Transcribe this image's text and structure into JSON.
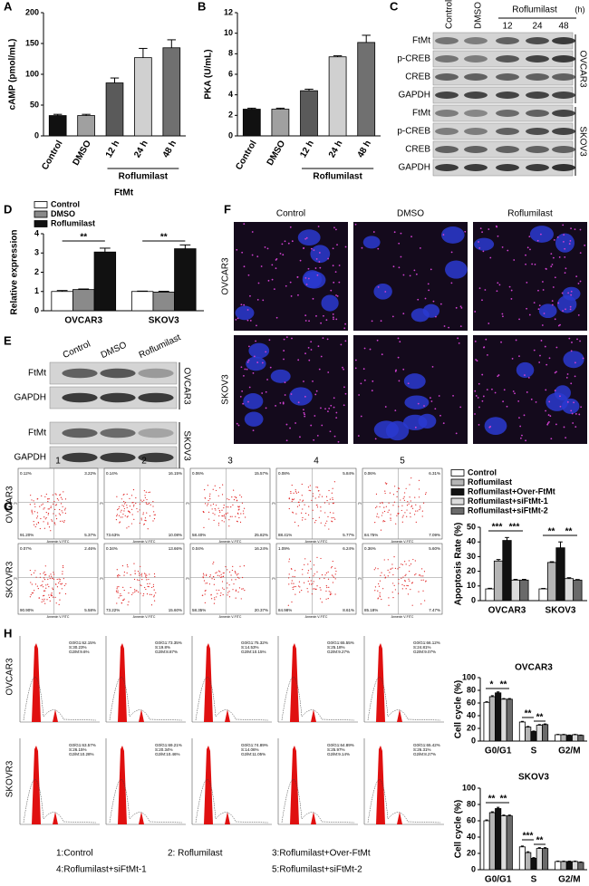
{
  "panel_labels": [
    "A",
    "B",
    "C",
    "D",
    "E",
    "F",
    "G",
    "H"
  ],
  "chart_data": [
    {
      "type": "bar",
      "ylabel": "cAMP (pmol/mL)",
      "categories": [
        "Control",
        "DMSO",
        "12 h",
        "24 h",
        "48 h"
      ],
      "group_label": "Roflumilast",
      "values": [
        33,
        33,
        86,
        127,
        143
      ],
      "errors": [
        2,
        2,
        8,
        15,
        13
      ],
      "colors": [
        "#111111",
        "#a0a0a0",
        "#5a5a5a",
        "#d0d0d0",
        "#707070"
      ],
      "ylim": [
        0,
        200
      ],
      "yticks": [
        0,
        50,
        100,
        150,
        200
      ]
    },
    {
      "type": "bar",
      "ylabel": "PKA (U/mL)",
      "categories": [
        "Control",
        "DMSO",
        "12 h",
        "24 h",
        "48 h"
      ],
      "group_label": "Roflumilast",
      "values": [
        2.6,
        2.6,
        4.4,
        7.7,
        9.1
      ],
      "errors": [
        0.1,
        0.1,
        0.15,
        0.1,
        0.7
      ],
      "colors": [
        "#111111",
        "#a0a0a0",
        "#5a5a5a",
        "#d0d0d0",
        "#707070"
      ],
      "ylim": [
        0,
        12
      ],
      "yticks": [
        0,
        2,
        4,
        6,
        8,
        10,
        12
      ]
    },
    {
      "type": "grouped_bar",
      "title": "FtMt",
      "ylabel": "Relative expression",
      "categories": [
        "OVCAR3",
        "SKOV3"
      ],
      "series": [
        {
          "name": "Control",
          "color": "#ffffff",
          "values": [
            1.0,
            1.0
          ],
          "errors": [
            0.05,
            0.02
          ]
        },
        {
          "name": "DMSO",
          "color": "#8a8a8a",
          "values": [
            1.1,
            0.97
          ],
          "errors": [
            0.03,
            0.04
          ]
        },
        {
          "name": "Roflumilast",
          "color": "#111111",
          "values": [
            3.05,
            3.22
          ],
          "errors": [
            0.2,
            0.2
          ]
        }
      ],
      "ylim": [
        0,
        4
      ],
      "yticks": [
        0,
        1,
        2,
        3,
        4
      ],
      "annotations": [
        "**",
        "**"
      ]
    },
    {
      "type": "grouped_bar",
      "ylabel": "Apoptosis Rate (%)",
      "categories": [
        "OVCAR3",
        "SKOV3"
      ],
      "series": [
        {
          "name": "Control",
          "color": "#ffffff",
          "values": [
            8,
            8
          ],
          "errors": [
            0.4,
            0.3
          ]
        },
        {
          "name": "Roflumilast",
          "color": "#b5b5b5",
          "values": [
            27,
            26
          ],
          "errors": [
            1,
            0.5
          ]
        },
        {
          "name": "Roflumilast+Over-FtMt",
          "color": "#111111",
          "values": [
            41,
            36
          ],
          "errors": [
            2,
            4
          ]
        },
        {
          "name": "Roflumilast+siFtMt-1",
          "color": "#dcdcdc",
          "values": [
            14,
            15
          ],
          "errors": [
            0.5,
            0.6
          ]
        },
        {
          "name": "Roflumilast+siFtMt-2",
          "color": "#6a6a6a",
          "values": [
            14,
            14
          ],
          "errors": [
            0.5,
            0.4
          ]
        }
      ],
      "ylim": [
        0,
        50
      ],
      "yticks": [
        0,
        10,
        20,
        30,
        40,
        50
      ],
      "annotations": [
        "***",
        "***",
        "**",
        "**"
      ]
    },
    {
      "type": "grouped_bar",
      "title": "OVCAR3",
      "ylabel": "Cell cycle (%)",
      "categories": [
        "G0/G1",
        "S",
        "G2/M"
      ],
      "series": [
        {
          "name": "Control",
          "color": "#ffffff",
          "values": [
            61,
            30,
            10
          ],
          "errors": [
            1,
            1,
            0.5
          ]
        },
        {
          "name": "Roflumilast",
          "color": "#b5b5b5",
          "values": [
            70,
            22,
            10
          ],
          "errors": [
            1.5,
            1,
            0.5
          ]
        },
        {
          "name": "Roflumilast+Over-FtMt",
          "color": "#111111",
          "values": [
            76,
            15,
            9
          ],
          "errors": [
            1.5,
            0.8,
            0.5
          ]
        },
        {
          "name": "Roflumilast+siFtMt-1",
          "color": "#dcdcdc",
          "values": [
            66,
            25,
            10
          ],
          "errors": [
            1,
            1,
            0.5
          ]
        },
        {
          "name": "Roflumilast+siFtMt-2",
          "color": "#6a6a6a",
          "values": [
            66,
            26,
            9
          ],
          "errors": [
            1,
            1,
            0.5
          ]
        }
      ],
      "ylim": [
        0,
        100
      ],
      "yticks": [
        0,
        20,
        40,
        60,
        80,
        100
      ],
      "annotations": [
        "*",
        "**",
        "**",
        "**"
      ]
    },
    {
      "type": "grouped_bar",
      "title": "SKOV3",
      "ylabel": "Cell cycle (%)",
      "categories": [
        "G0/G1",
        "S",
        "G2/M"
      ],
      "series": [
        {
          "name": "Control",
          "color": "#ffffff",
          "values": [
            60,
            28,
            10
          ],
          "errors": [
            1,
            1,
            0.5
          ]
        },
        {
          "name": "Roflumilast",
          "color": "#b5b5b5",
          "values": [
            70,
            21,
            10
          ],
          "errors": [
            1,
            1,
            0.5
          ]
        },
        {
          "name": "Roflumilast+Over-FtMt",
          "color": "#111111",
          "values": [
            75,
            14,
            10
          ],
          "errors": [
            1.5,
            0.8,
            0.5
          ]
        },
        {
          "name": "Roflumilast+siFtMt-1",
          "color": "#dcdcdc",
          "values": [
            66,
            26,
            10
          ],
          "errors": [
            1,
            1,
            0.5
          ]
        },
        {
          "name": "Roflumilast+siFtMt-2",
          "color": "#6a6a6a",
          "values": [
            66,
            26,
            9
          ],
          "errors": [
            1,
            1,
            0.5
          ]
        }
      ],
      "ylim": [
        0,
        100
      ],
      "yticks": [
        0,
        20,
        40,
        60,
        80,
        100
      ],
      "annotations": [
        "**",
        "**",
        "***",
        "**"
      ]
    }
  ],
  "blot_c": {
    "columns": [
      "Control",
      "DMSO",
      "12",
      "24",
      "48"
    ],
    "group": "Roflumilast",
    "unit": "(h)",
    "rows": [
      "FtMt",
      "p-CREB",
      "CREB",
      "GAPDH",
      "FtMt",
      "p-CREB",
      "CREB",
      "GAPDH"
    ],
    "cell_lines": [
      "OVCAR3",
      "SKOV3"
    ]
  },
  "blot_e": {
    "columns": [
      "Control",
      "DMSO",
      "Roflumilast"
    ],
    "rows": [
      "FtMt",
      "GAPDH",
      "FtMt",
      "GAPDH"
    ],
    "cell_lines": [
      "OVCAR3",
      "SKOV3"
    ]
  },
  "micro_f": {
    "columns": [
      "Control",
      "DMSO",
      "Roflumilast"
    ],
    "rows": [
      "OVCAR3",
      "SKOV3"
    ]
  },
  "flow_g": {
    "columns": [
      "1",
      "2",
      "3",
      "4",
      "5"
    ],
    "rows": [
      "OVCAR3",
      "SKOVR3"
    ],
    "x_axis": "Annexin V-FITC",
    "y_axis": "PI",
    "quadrants": [
      [
        [
          "0.12%",
          "3.22%",
          "91.20%",
          "5.37%"
        ],
        [
          "0.14%",
          "16.15%",
          "73.63%",
          "10.08%"
        ],
        [
          "0.06%",
          "15.57%",
          "58.40%",
          "25.82%"
        ],
        [
          "0.08%",
          "5.84%",
          "88.41%",
          "5.77%"
        ],
        [
          "0.06%",
          "6.31%",
          "84.75%",
          "7.09%"
        ]
      ],
      [
        [
          "0.07%",
          "2.46%",
          "90.90%",
          "5.58%"
        ],
        [
          "0.34%",
          "13.66%",
          "73.22%",
          "15.60%"
        ],
        [
          "0.04%",
          "16.24%",
          "58.35%",
          "20.37%"
        ],
        [
          "1.09%",
          "6.24%",
          "84.98%",
          "8.61%"
        ],
        [
          "0.36%",
          "5.60%",
          "85.18%",
          "7.47%"
        ]
      ]
    ]
  },
  "cycle_h": {
    "rows": [
      "OVCAR3",
      "SKOVR3"
    ],
    "stats": [
      [
        [
          "G0/G1:62.15%",
          "S:30.23%",
          "G2/M:9.6%"
        ],
        [
          "G0/G1:73.35%",
          "S:19.8%",
          "G2/M:8.87%"
        ],
        [
          "G0/G1:75.32%",
          "S:14.53%",
          "G2/M:10.15%"
        ],
        [
          "G0/G1:65.55%",
          "S:25.18%",
          "G2/M:9.27%"
        ],
        [
          "G0/G1:66.12%",
          "S:24.81%",
          "G2/M:9.07%"
        ]
      ],
      [
        [
          "G0/G1:63.57%",
          "S:26.15%",
          "G2/M:10.28%"
        ],
        [
          "G0/G1:69.21%",
          "S:20.34%",
          "G2/M:10.46%"
        ],
        [
          "G0/G1:74.89%",
          "S:14.06%",
          "G2/M:11.05%"
        ],
        [
          "G0/G1:64.89%",
          "S:25.97%",
          "G2/M:9.14%"
        ],
        [
          "G0/G1:65.42%",
          "S:26.31%",
          "G2/M:8.27%"
        ]
      ]
    ],
    "legend": [
      "1:Control",
      "2: Roflumilast",
      "3:Roflumilast+Over-FtMt",
      "4:Roflumilast+siFtMt-1",
      "5:Roflumilast+siFtMt-2"
    ]
  }
}
